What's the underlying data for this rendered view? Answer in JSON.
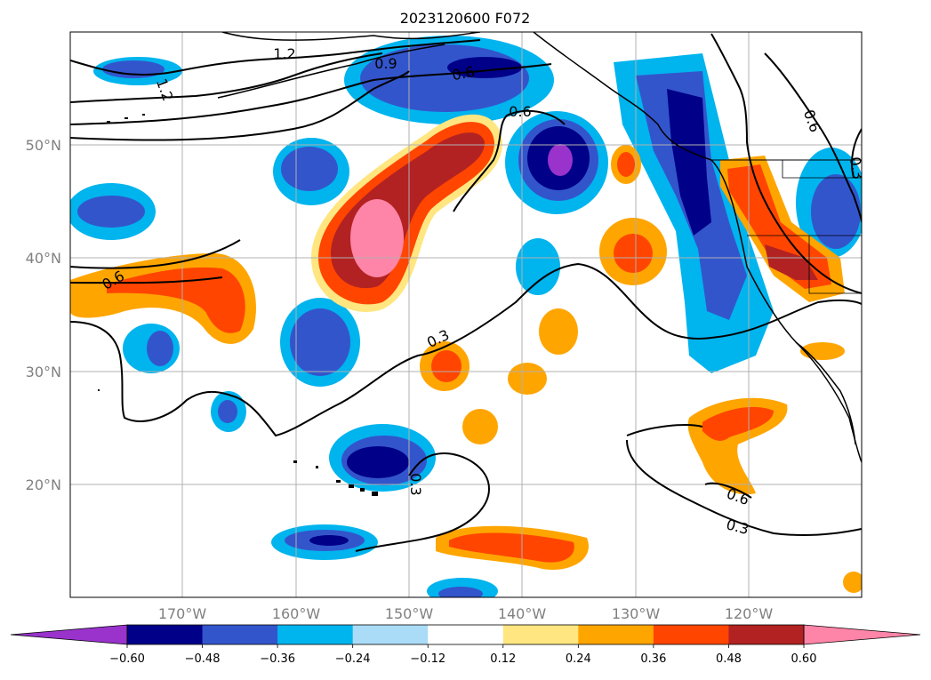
{
  "title": "2023120600 F072",
  "map": {
    "lon_range": [
      -180,
      -110
    ],
    "lat_range": [
      10,
      60
    ],
    "lon_labels": [
      "170°W",
      "160°W",
      "150°W",
      "140°W",
      "130°W",
      "120°W"
    ],
    "lat_labels": [
      "50°N",
      "40°N",
      "30°N",
      "20°N"
    ],
    "grid": true,
    "contour_labels": [
      "1.2",
      "1.2",
      "0.9",
      "0.6",
      "0.6",
      "0.6",
      "0.6",
      "0.3",
      "0.3",
      "0.3",
      "0.6",
      "0.3"
    ]
  },
  "colorbar": {
    "orientation": "horizontal",
    "extend": "both",
    "colors": [
      "#9933cc",
      "#000088",
      "#3355cc",
      "#00b4ee",
      "#aadcf8",
      "#ffffff",
      "#ffe680",
      "#ffa500",
      "#ff4500",
      "#b22222",
      "#ff85a8"
    ],
    "tick_labels": [
      "−0.60",
      "−0.48",
      "−0.36",
      "−0.24",
      "−0.12",
      "0.12",
      "0.24",
      "0.36",
      "0.48",
      "0.60"
    ]
  }
}
